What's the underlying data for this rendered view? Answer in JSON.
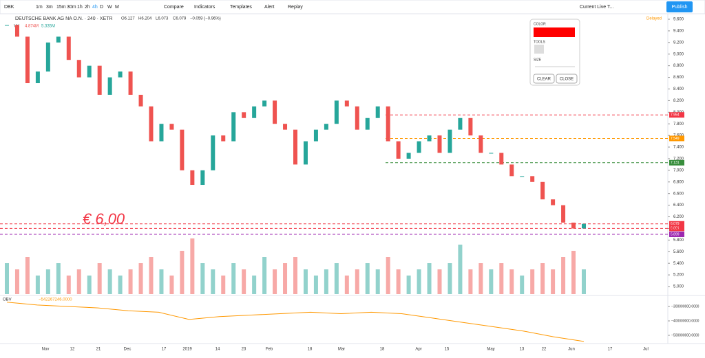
{
  "toolbar": {
    "symbol": "DBK",
    "intervals": [
      "1m",
      "3m",
      "15m",
      "30m",
      "1h",
      "2h",
      "4h",
      "D",
      "W",
      "M"
    ],
    "buttons": [
      "Compare",
      "Indicators",
      "Templates",
      "Alert",
      "Replay"
    ],
    "layout": "Current Live T...",
    "publish": "Publish"
  },
  "legend": {
    "name": "DEUTSCHE BANK AG NA O.N. · 240 · XETR",
    "ohlc": [
      "O6.127",
      "H6.204",
      "L6.073",
      "C6.079",
      "−0.059 (−0.96%)"
    ],
    "vol": "Vol",
    "vol_values": [
      "4.874M",
      "5.335M"
    ],
    "delayed": "Delayed"
  },
  "annotation": "€ 6,00",
  "panel": {
    "color": "COLOR",
    "tools": "TOOLS",
    "size": "SIZE",
    "clear": "CLEAR",
    "close": "CLOSE"
  },
  "price": {
    "closes": [
      9.5,
      9.3,
      8.5,
      8.7,
      9.2,
      9.3,
      8.9,
      8.6,
      8.8,
      8.3,
      8.6,
      8.7,
      8.3,
      8.1,
      7.5,
      7.8,
      7.7,
      7.0,
      6.75,
      7.0,
      7.6,
      7.5,
      8.0,
      7.9,
      8.1,
      8.2,
      7.8,
      7.7,
      7.1,
      7.5,
      7.7,
      7.8,
      8.2,
      8.1,
      7.7,
      7.9,
      8.1,
      7.5,
      7.2,
      7.3,
      7.5,
      7.6,
      7.3,
      7.7,
      7.9,
      7.6,
      7.3,
      7.3,
      7.1,
      6.9,
      6.9,
      6.8,
      6.5,
      6.4,
      6.1,
      6.0,
      6.08
    ],
    "volume": [
      5,
      4,
      6,
      3,
      4,
      5,
      3,
      4,
      3,
      5,
      4,
      3,
      4,
      5,
      6,
      4,
      3,
      7,
      9,
      5,
      4,
      3,
      5,
      4,
      3,
      6,
      4,
      5,
      6,
      4,
      3,
      4,
      5,
      3,
      4,
      5,
      4,
      6,
      4,
      3,
      4,
      5,
      4,
      5,
      8,
      4,
      5,
      4,
      5,
      4,
      3,
      4,
      5,
      4,
      6,
      7,
      4
    ],
    "levels": [
      {
        "value": 7.954,
        "label": "7.954",
        "color": "#f23645"
      },
      {
        "value": 7.549,
        "label": "7.549",
        "color": "#ff9800"
      },
      {
        "value": 7.131,
        "label": "7.131",
        "color": "#388e3c"
      },
      {
        "value": 6.079,
        "label": "6.079",
        "color": "#f23645"
      },
      {
        "value": 6.001,
        "label": "6.001",
        "color": "#f23645"
      },
      {
        "value": 5.899,
        "label": "5.899",
        "color": "#9c27b0"
      }
    ],
    "countdown": "01:09:17",
    "ylim": [
      5.0,
      9.6
    ],
    "yticks": [
      {
        "value": 9.6,
        "label": "9.600"
      },
      {
        "value": 9.4,
        "label": "9.400"
      },
      {
        "value": 9.2,
        "label": "9.200"
      },
      {
        "value": 9.0,
        "label": "9.000"
      },
      {
        "value": 8.8,
        "label": "8.800"
      },
      {
        "value": 8.6,
        "label": "8.600"
      },
      {
        "value": 8.4,
        "label": "8.400"
      },
      {
        "value": 8.2,
        "label": "8.200"
      },
      {
        "value": 8.0,
        "label": "8.000"
      },
      {
        "value": 7.8,
        "label": "7.800"
      },
      {
        "value": 7.6,
        "label": "7.600"
      },
      {
        "value": 7.4,
        "label": "7.400"
      },
      {
        "value": 7.2,
        "label": "7.200"
      },
      {
        "value": 7.0,
        "label": "7.000"
      },
      {
        "value": 6.8,
        "label": "6.800"
      },
      {
        "value": 6.6,
        "label": "6.600"
      },
      {
        "value": 6.4,
        "label": "6.400"
      },
      {
        "value": 6.2,
        "label": "6.200"
      },
      {
        "value": 6.0,
        "label": "6.000"
      },
      {
        "value": 5.8,
        "label": "5.800"
      },
      {
        "value": 5.6,
        "label": "5.600"
      },
      {
        "value": 5.4,
        "label": "5.400"
      },
      {
        "value": 5.2,
        "label": "5.200"
      },
      {
        "value": 5.0,
        "label": "5.000"
      }
    ]
  },
  "obv": {
    "name": "OBV",
    "value": "−542267246.0000",
    "values": [
      -270000000,
      -290000000,
      -300000000,
      -310000000,
      -330000000,
      -340000000,
      -390000000,
      -370000000,
      -360000000,
      -350000000,
      -340000000,
      -350000000,
      -340000000,
      -350000000,
      -380000000,
      -410000000,
      -440000000,
      -470000000,
      -510000000,
      -542267246
    ],
    "yticks": [
      {
        "value": -300000000,
        "label": "−300000000.0000"
      },
      {
        "value": -400000000,
        "label": "−400000000.0000"
      },
      {
        "value": -500000000,
        "label": "−500000000.0000"
      }
    ]
  },
  "time_axis": [
    "Nov",
    "12",
    "21",
    "Dec",
    "17",
    "2019",
    "14",
    "23",
    "Feb",
    "18",
    "Mar",
    "18",
    "Apr",
    "15",
    "May",
    "13",
    "22",
    "Jun",
    "17",
    "Jul"
  ]
}
